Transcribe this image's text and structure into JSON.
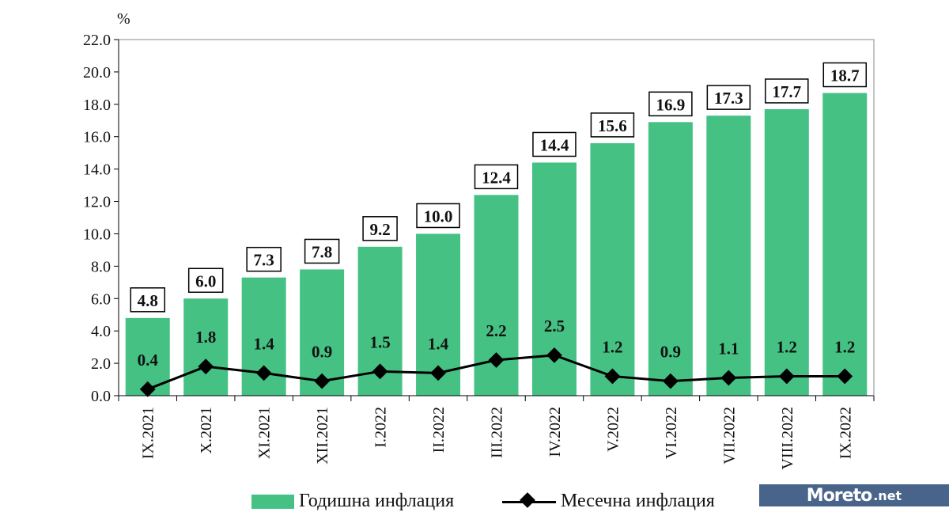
{
  "chart_data": {
    "type": "bar",
    "unit_label": "%",
    "categories": [
      "IX.2021",
      "X.2021",
      "XI.2021",
      "XII.2021",
      "I.2022",
      "II.2022",
      "III.2022",
      "IV.2022",
      "V.2022",
      "VI.2022",
      "VII.2022",
      "VIII.2022",
      "IX.2022"
    ],
    "series": [
      {
        "name": "Годишна инфлация",
        "type": "bar",
        "color": "#45c184",
        "values": [
          4.8,
          6.0,
          7.3,
          7.8,
          9.2,
          10.0,
          12.4,
          14.4,
          15.6,
          16.9,
          17.3,
          17.7,
          18.7
        ]
      },
      {
        "name": "Месечна инфлация",
        "type": "line",
        "color": "#000000",
        "values": [
          0.4,
          1.8,
          1.4,
          0.9,
          1.5,
          1.4,
          2.2,
          2.5,
          1.2,
          0.9,
          1.1,
          1.2,
          1.2
        ]
      }
    ],
    "ylim": [
      0,
      22
    ],
    "yticks": [
      "0.0",
      "2.0",
      "4.0",
      "6.0",
      "8.0",
      "10.0",
      "12.0",
      "14.0",
      "16.0",
      "18.0",
      "20.0",
      "22.0"
    ],
    "legend_position": "bottom",
    "grid": false
  },
  "watermark": {
    "text": "Moreto",
    "suffix": ".net"
  }
}
